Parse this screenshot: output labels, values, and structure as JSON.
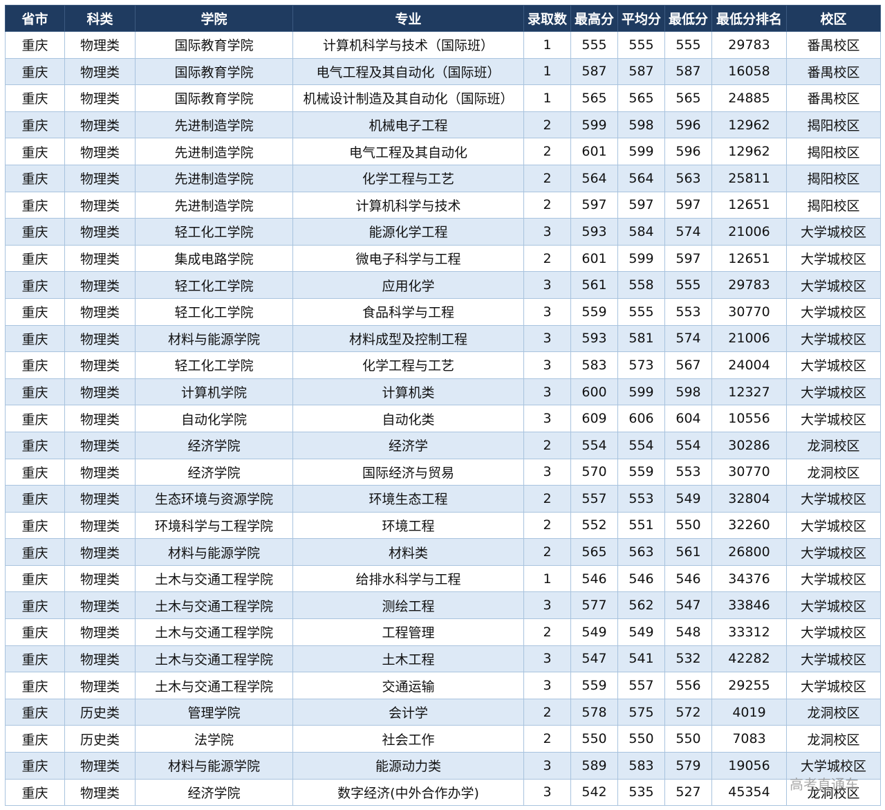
{
  "table": {
    "header": [
      "省市",
      "科类",
      "学院",
      "专业",
      "录取数",
      "最高分",
      "平均分",
      "最低分",
      "最低分排名",
      "校区"
    ],
    "rows": [
      [
        "重庆",
        "物理类",
        "国际教育学院",
        "计算机科学与技术（国际班）",
        1,
        555,
        555,
        555,
        29783,
        "番禺校区"
      ],
      [
        "重庆",
        "物理类",
        "国际教育学院",
        "电气工程及其自动化（国际班）",
        1,
        587,
        587,
        587,
        16058,
        "番禺校区"
      ],
      [
        "重庆",
        "物理类",
        "国际教育学院",
        "机械设计制造及其自动化（国际班）",
        1,
        565,
        565,
        565,
        24885,
        "番禺校区"
      ],
      [
        "重庆",
        "物理类",
        "先进制造学院",
        "机械电子工程",
        2,
        599,
        598,
        596,
        12962,
        "揭阳校区"
      ],
      [
        "重庆",
        "物理类",
        "先进制造学院",
        "电气工程及其自动化",
        2,
        601,
        599,
        596,
        12962,
        "揭阳校区"
      ],
      [
        "重庆",
        "物理类",
        "先进制造学院",
        "化学工程与工艺",
        2,
        564,
        564,
        563,
        25811,
        "揭阳校区"
      ],
      [
        "重庆",
        "物理类",
        "先进制造学院",
        "计算机科学与技术",
        2,
        597,
        597,
        597,
        12651,
        "揭阳校区"
      ],
      [
        "重庆",
        "物理类",
        "轻工化工学院",
        "能源化学工程",
        3,
        593,
        584,
        574,
        21006,
        "大学城校区"
      ],
      [
        "重庆",
        "物理类",
        "集成电路学院",
        "微电子科学与工程",
        2,
        601,
        599,
        597,
        12651,
        "大学城校区"
      ],
      [
        "重庆",
        "物理类",
        "轻工化工学院",
        "应用化学",
        3,
        561,
        558,
        555,
        29783,
        "大学城校区"
      ],
      [
        "重庆",
        "物理类",
        "轻工化工学院",
        "食品科学与工程",
        3,
        559,
        555,
        553,
        30770,
        "大学城校区"
      ],
      [
        "重庆",
        "物理类",
        "材料与能源学院",
        "材料成型及控制工程",
        3,
        593,
        581,
        574,
        21006,
        "大学城校区"
      ],
      [
        "重庆",
        "物理类",
        "轻工化工学院",
        "化学工程与工艺",
        3,
        583,
        573,
        567,
        24004,
        "大学城校区"
      ],
      [
        "重庆",
        "物理类",
        "计算机学院",
        "计算机类",
        3,
        600,
        599,
        598,
        12327,
        "大学城校区"
      ],
      [
        "重庆",
        "物理类",
        "自动化学院",
        "自动化类",
        3,
        609,
        606,
        604,
        10556,
        "大学城校区"
      ],
      [
        "重庆",
        "物理类",
        "经济学院",
        "经济学",
        2,
        554,
        554,
        554,
        30286,
        "龙洞校区"
      ],
      [
        "重庆",
        "物理类",
        "经济学院",
        "国际经济与贸易",
        3,
        570,
        559,
        553,
        30770,
        "龙洞校区"
      ],
      [
        "重庆",
        "物理类",
        "生态环境与资源学院",
        "环境生态工程",
        2,
        557,
        553,
        549,
        32804,
        "大学城校区"
      ],
      [
        "重庆",
        "物理类",
        "环境科学与工程学院",
        "环境工程",
        2,
        552,
        551,
        550,
        32260,
        "大学城校区"
      ],
      [
        "重庆",
        "物理类",
        "材料与能源学院",
        "材料类",
        2,
        565,
        563,
        561,
        26800,
        "大学城校区"
      ],
      [
        "重庆",
        "物理类",
        "土木与交通工程学院",
        "给排水科学与工程",
        1,
        546,
        546,
        546,
        34376,
        "大学城校区"
      ],
      [
        "重庆",
        "物理类",
        "土木与交通工程学院",
        "测绘工程",
        3,
        577,
        562,
        547,
        33846,
        "大学城校区"
      ],
      [
        "重庆",
        "物理类",
        "土木与交通工程学院",
        "工程管理",
        2,
        549,
        549,
        548,
        33312,
        "大学城校区"
      ],
      [
        "重庆",
        "物理类",
        "土木与交通工程学院",
        "土木工程",
        3,
        547,
        541,
        532,
        42282,
        "大学城校区"
      ],
      [
        "重庆",
        "物理类",
        "土木与交通工程学院",
        "交通运输",
        3,
        559,
        557,
        556,
        29255,
        "大学城校区"
      ],
      [
        "重庆",
        "历史类",
        "管理学院",
        "会计学",
        2,
        578,
        575,
        572,
        4019,
        "龙洞校区"
      ],
      [
        "重庆",
        "历史类",
        "法学院",
        "社会工作",
        2,
        550,
        550,
        550,
        7083,
        "龙洞校区"
      ],
      [
        "重庆",
        "物理类",
        "材料与能源学院",
        "能源动力类",
        3,
        589,
        583,
        579,
        19056,
        "大学城校区"
      ],
      [
        "重庆",
        "物理类",
        "经济学院",
        "数字经济(中外合作办学)",
        3,
        542,
        535,
        527,
        45354,
        "龙洞校区"
      ]
    ]
  },
  "watermark": "高考直通车"
}
